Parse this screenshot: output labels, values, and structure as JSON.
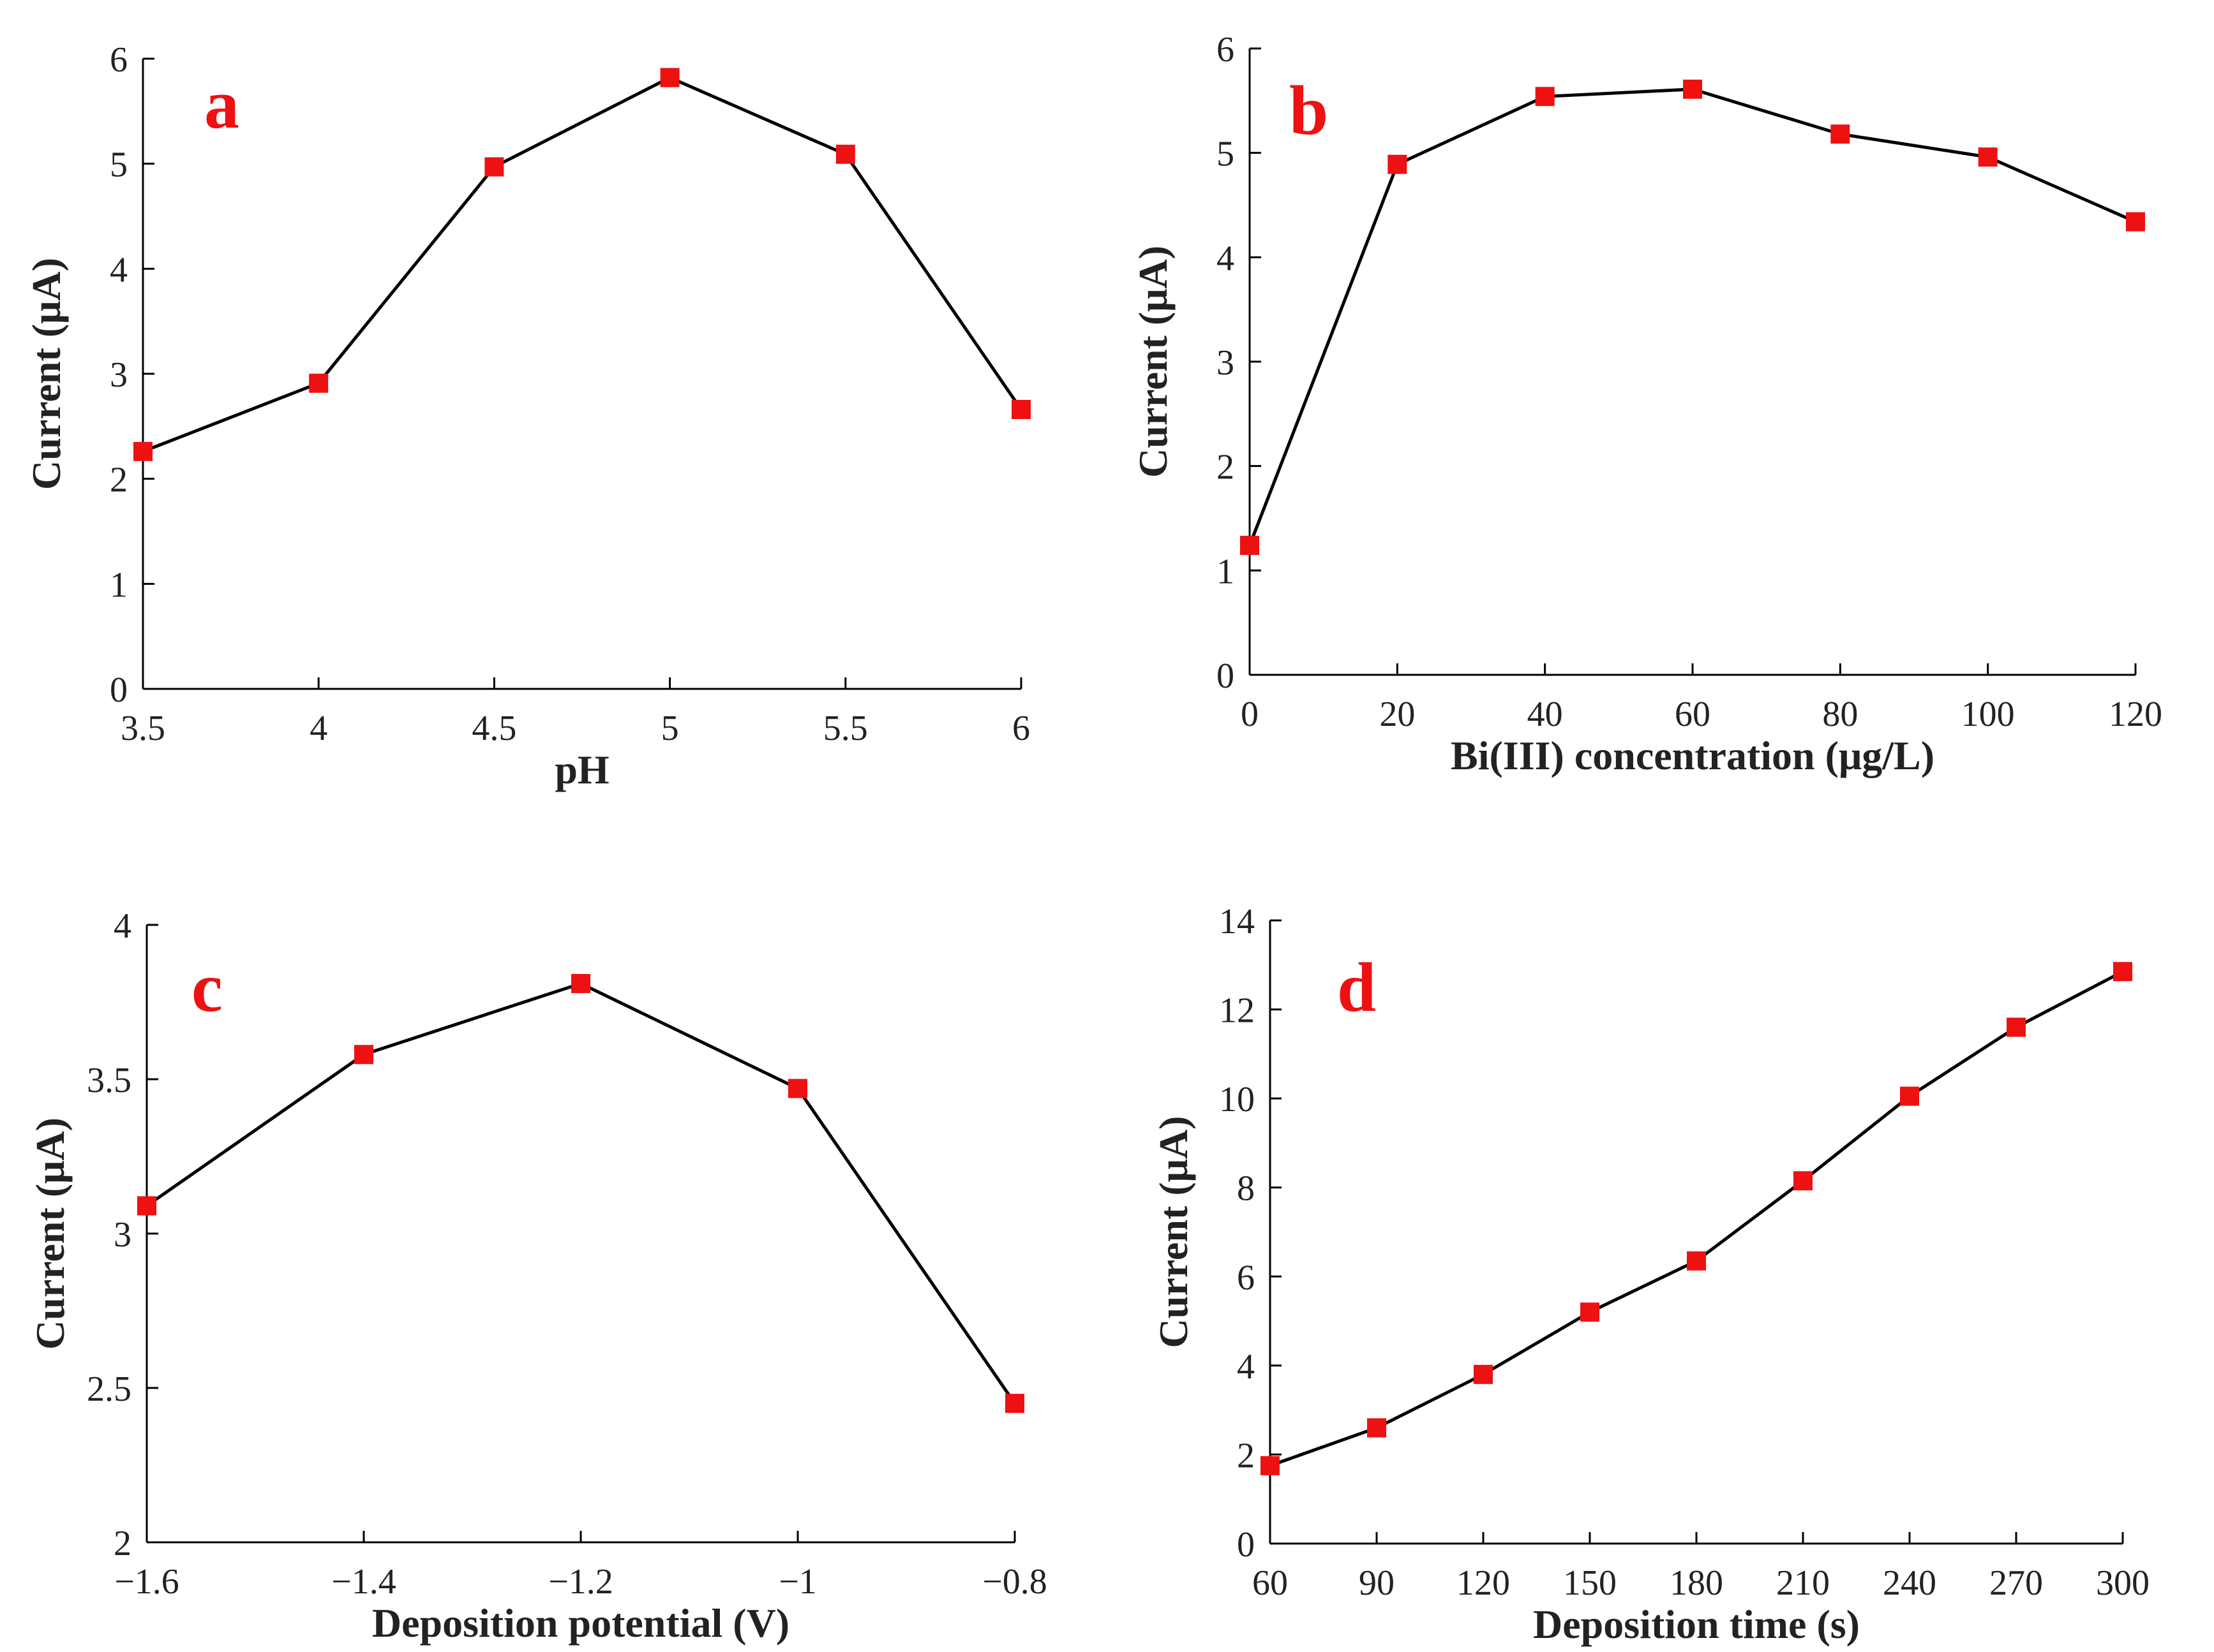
{
  "colors": {
    "marker": "#ee1111",
    "line": "#000000",
    "panel_label": "#ee1111"
  },
  "chart_data": [
    {
      "type": "line",
      "panel_label": "a",
      "xlabel": "pH",
      "ylabel": "Current (μA)",
      "xlim": [
        3.5,
        6
      ],
      "ylim": [
        0,
        6
      ],
      "x_ticks": [
        3.5,
        4,
        4.5,
        5,
        5.5,
        6
      ],
      "x_tick_labels": [
        "3.5",
        "4",
        "4.5",
        "5",
        "5.5",
        "6"
      ],
      "y_ticks": [
        0,
        1,
        2,
        3,
        4,
        5,
        6
      ],
      "y_tick_labels": [
        "0",
        "1",
        "2",
        "3",
        "4",
        "5",
        "6"
      ],
      "x": [
        3.5,
        4,
        4.5,
        5,
        5.5,
        6
      ],
      "y": [
        2.26,
        2.91,
        4.97,
        5.82,
        5.09,
        2.66
      ]
    },
    {
      "type": "line",
      "panel_label": "b",
      "xlabel": "Bi(III) concentration (μg/L)",
      "ylabel": "Current (μA)",
      "xlim": [
        0,
        120
      ],
      "ylim": [
        0,
        6
      ],
      "x_ticks": [
        0,
        20,
        40,
        60,
        80,
        100,
        120
      ],
      "x_tick_labels": [
        "0",
        "20",
        "40",
        "60",
        "80",
        "100",
        "120"
      ],
      "y_ticks": [
        0,
        1,
        2,
        3,
        4,
        5,
        6
      ],
      "y_tick_labels": [
        "0",
        "1",
        "2",
        "3",
        "4",
        "5",
        "6"
      ],
      "x": [
        0,
        20,
        40,
        60,
        80,
        100,
        120
      ],
      "y": [
        1.24,
        4.89,
        5.54,
        5.61,
        5.18,
        4.96,
        4.34
      ]
    },
    {
      "type": "line",
      "panel_label": "c",
      "xlabel": "Deposition potential (V)",
      "ylabel": "Current (μA)",
      "xlim": [
        -1.6,
        -0.8
      ],
      "ylim": [
        2,
        4
      ],
      "x_ticks": [
        -1.6,
        -1.4,
        -1.2,
        -1.0,
        -0.8
      ],
      "x_tick_labels": [
        "−1.6",
        "−1.4",
        "−1.2",
        "−1",
        "−0.8"
      ],
      "y_ticks": [
        2,
        2.5,
        3,
        3.5,
        4
      ],
      "y_tick_labels": [
        "2",
        "2.5",
        "3",
        "3.5",
        "4"
      ],
      "x": [
        -1.6,
        -1.4,
        -1.2,
        -1.0,
        -0.8
      ],
      "y": [
        3.09,
        3.58,
        3.81,
        3.47,
        2.45
      ]
    },
    {
      "type": "line",
      "panel_label": "d",
      "xlabel": "Deposition time (s)",
      "ylabel": "Current (μA)",
      "xlim": [
        60,
        300
      ],
      "ylim": [
        0,
        14
      ],
      "x_ticks": [
        60,
        90,
        120,
        150,
        180,
        210,
        240,
        270,
        300
      ],
      "x_tick_labels": [
        "60",
        "90",
        "120",
        "150",
        "180",
        "210",
        "240",
        "270",
        "300"
      ],
      "y_ticks": [
        0,
        2,
        4,
        6,
        8,
        10,
        12,
        14
      ],
      "y_tick_labels": [
        "0",
        "2",
        "4",
        "6",
        "8",
        "10",
        "12",
        "14"
      ],
      "x": [
        60,
        90,
        120,
        150,
        180,
        210,
        240,
        270,
        300
      ],
      "y": [
        1.75,
        2.6,
        3.8,
        5.2,
        6.35,
        8.15,
        10.05,
        11.6,
        12.85
      ]
    }
  ]
}
